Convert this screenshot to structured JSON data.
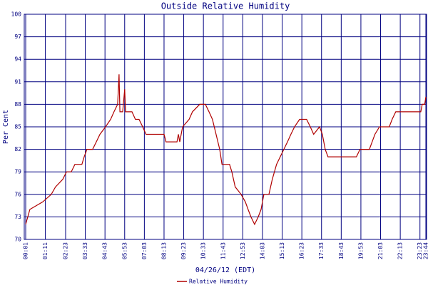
{
  "chart_data": {
    "type": "line",
    "title": "Outside Relative Humidity",
    "ylabel": "Per Cent",
    "xlabel": "04/26/12 (EDT)",
    "xlim": [
      1,
      1424
    ],
    "ylim": [
      70,
      100
    ],
    "yticks": [
      70,
      73,
      76,
      79,
      82,
      85,
      88,
      91,
      94,
      97,
      100
    ],
    "xticks": [
      {
        "value": 1,
        "label": "00:01"
      },
      {
        "value": 71,
        "label": "01:11"
      },
      {
        "value": 143,
        "label": "02:23"
      },
      {
        "value": 213,
        "label": "03:33"
      },
      {
        "value": 283,
        "label": "04:43"
      },
      {
        "value": 353,
        "label": "05:53"
      },
      {
        "value": 423,
        "label": "07:03"
      },
      {
        "value": 493,
        "label": "08:13"
      },
      {
        "value": 563,
        "label": "09:23"
      },
      {
        "value": 633,
        "label": "10:33"
      },
      {
        "value": 703,
        "label": "11:43"
      },
      {
        "value": 773,
        "label": "12:53"
      },
      {
        "value": 843,
        "label": "14:03"
      },
      {
        "value": 913,
        "label": "15:13"
      },
      {
        "value": 983,
        "label": "16:23"
      },
      {
        "value": 1053,
        "label": "17:33"
      },
      {
        "value": 1123,
        "label": "18:43"
      },
      {
        "value": 1193,
        "label": "19:53"
      },
      {
        "value": 1263,
        "label": "21:03"
      },
      {
        "value": 1333,
        "label": "22:13"
      },
      {
        "value": 1403,
        "label": "23:23"
      },
      {
        "value": 1424,
        "label": "23:44"
      }
    ],
    "grid": true,
    "series": [
      {
        "name": "Relative Humidity",
        "color": "#b00000",
        "x": [
          1,
          16,
          62,
          92,
          107,
          133,
          146,
          163,
          176,
          201,
          209,
          219,
          239,
          252,
          265,
          285,
          303,
          315,
          328,
          333,
          336,
          346,
          353,
          356,
          379,
          391,
          404,
          417,
          429,
          493,
          500,
          539,
          544,
          549,
          559,
          582,
          594,
          620,
          640,
          653,
          665,
          678,
          691,
          699,
          726,
          734,
          746,
          767,
          782,
          792,
          802,
          815,
          828,
          838,
          848,
          866,
          878,
          893,
          906,
          919,
          932,
          944,
          957,
          975,
          1000,
          1013,
          1025,
          1046,
          1056,
          1066,
          1076,
          1177,
          1190,
          1223,
          1233,
          1243,
          1259,
          1294,
          1304,
          1317,
          1406,
          1411,
          1420,
          1424
        ],
        "values": [
          72,
          74,
          75,
          76,
          77,
          78,
          79,
          79,
          80,
          80,
          81,
          82,
          82,
          83,
          84,
          85,
          86,
          87,
          88,
          92,
          87,
          87,
          90,
          87,
          87,
          86,
          86,
          85,
          84,
          84,
          83,
          83,
          84,
          83,
          85,
          86,
          87,
          88,
          88,
          87,
          86,
          84,
          82,
          80,
          80,
          79,
          77,
          76,
          75,
          74,
          73,
          72,
          73,
          74,
          76,
          76,
          78,
          80,
          81,
          82,
          83,
          84,
          85,
          86,
          86,
          85,
          84,
          85,
          84,
          82,
          81,
          81,
          82,
          82,
          83,
          84,
          85,
          85,
          86,
          87,
          87,
          88,
          88,
          89
        ]
      }
    ]
  }
}
